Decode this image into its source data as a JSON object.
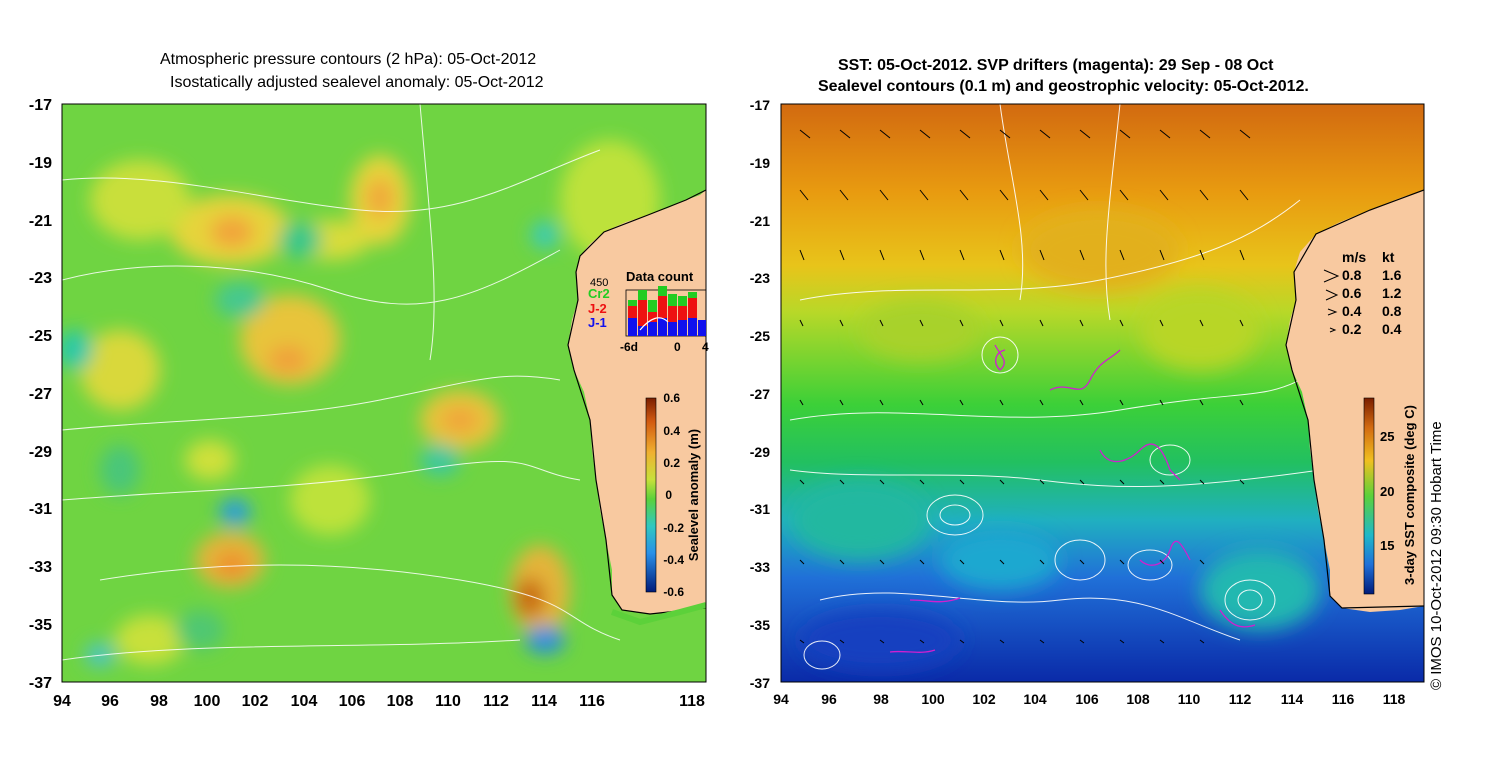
{
  "left_panel": {
    "title_line1": "Atmospheric pressure contours (2 hPa): 05-Oct-2012",
    "title_line2": "Isostatically adjusted sealevel anomaly: 05-Oct-2012",
    "y_ticks": [
      "-17",
      "-19",
      "-21",
      "-23",
      "-25",
      "-27",
      "-29",
      "-31",
      "-33",
      "-35",
      "-37"
    ],
    "x_ticks": [
      "94",
      "96",
      "98",
      "100",
      "102",
      "104",
      "106",
      "108",
      "110",
      "112",
      "114",
      "116",
      "118"
    ],
    "colorbar": {
      "label": "Sealevel anomaly (m)",
      "ticks": [
        "0.6",
        "0.4",
        "0.2",
        "0",
        "-0.2",
        "-0.4",
        "-0.6"
      ]
    },
    "data_count": {
      "title": "Data count",
      "max_label": "450",
      "legend": [
        {
          "name": "Cr2",
          "color": "#22cc22"
        },
        {
          "name": "J-2",
          "color": "#ee1111"
        },
        {
          "name": "J-1",
          "color": "#1111ee"
        }
      ],
      "x_ticks": [
        "-6d",
        "0",
        "4"
      ]
    }
  },
  "right_panel": {
    "title_line1": "SST: 05-Oct-2012. SVP drifters (magenta): 29 Sep - 08 Oct",
    "title_line2": "Sealevel contours (0.1 m) and geostrophic velocity: 05-Oct-2012.",
    "y_ticks": [
      "-17",
      "-19",
      "-21",
      "-23",
      "-25",
      "-27",
      "-29",
      "-31",
      "-33",
      "-35",
      "-37"
    ],
    "x_ticks": [
      "94",
      "96",
      "98",
      "100",
      "102",
      "104",
      "106",
      "108",
      "110",
      "112",
      "114",
      "116",
      "118"
    ],
    "velocity_legend": {
      "header_ms": "m/s",
      "header_kt": "kt",
      "rows": [
        {
          "ms": "0.8",
          "kt": "1.6"
        },
        {
          "ms": "0.6",
          "kt": "1.2"
        },
        {
          "ms": "0.4",
          "kt": "0.8"
        },
        {
          "ms": "0.2",
          "kt": "0.4"
        }
      ]
    },
    "colorbar": {
      "label": "3-day SST composite (deg C)",
      "ticks": [
        "25",
        "20",
        "15"
      ]
    }
  },
  "copyright": "© IMOS 10-Oct-2012 09:30 Hobart Time",
  "colors": {
    "land": "#f8c9a0",
    "ssl_neutral": "#5cd13a",
    "sst_warm": "#e08a10",
    "sst_cool": "#1a55c8"
  }
}
